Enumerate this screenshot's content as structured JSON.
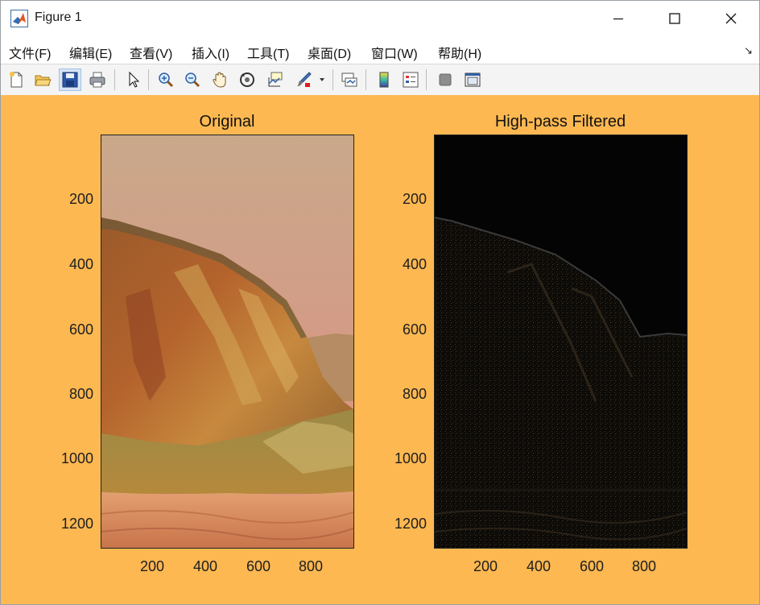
{
  "window": {
    "title": "Figure 1"
  },
  "menu": [
    {
      "id": "file",
      "label": "文件(F)"
    },
    {
      "id": "edit",
      "label": "编辑(E)"
    },
    {
      "id": "view",
      "label": "查看(V)"
    },
    {
      "id": "insert",
      "label": "插入(I)"
    },
    {
      "id": "tools",
      "label": "工具(T)"
    },
    {
      "id": "desktop",
      "label": "桌面(D)"
    },
    {
      "id": "window",
      "label": "窗口(W)"
    },
    {
      "id": "help",
      "label": "帮助(H)"
    }
  ],
  "toolbar": [
    "new-figure-icon",
    "open-file-icon",
    "save-icon",
    "print-icon",
    "edit-plot-arrow-icon",
    "zoom-in-icon",
    "zoom-out-icon",
    "pan-hand-icon",
    "rotate-3d-icon",
    "data-cursor-icon",
    "brush-icon",
    "link-plot-icon",
    "colorbar-icon",
    "legend-icon",
    "hide-plot-tools-icon",
    "show-plot-tools-icon"
  ],
  "figure": {
    "background": "#fdb851",
    "axes": [
      {
        "id": "original",
        "title": "Original",
        "yticks": [
          "200",
          "400",
          "600",
          "800",
          "1000",
          "1200"
        ],
        "xticks": [
          "200",
          "400",
          "600",
          "800"
        ]
      },
      {
        "id": "highpass",
        "title": "High-pass Filtered",
        "yticks": [
          "200",
          "400",
          "600",
          "800",
          "1000",
          "1200"
        ],
        "xticks": [
          "200",
          "400",
          "600",
          "800"
        ]
      }
    ]
  }
}
